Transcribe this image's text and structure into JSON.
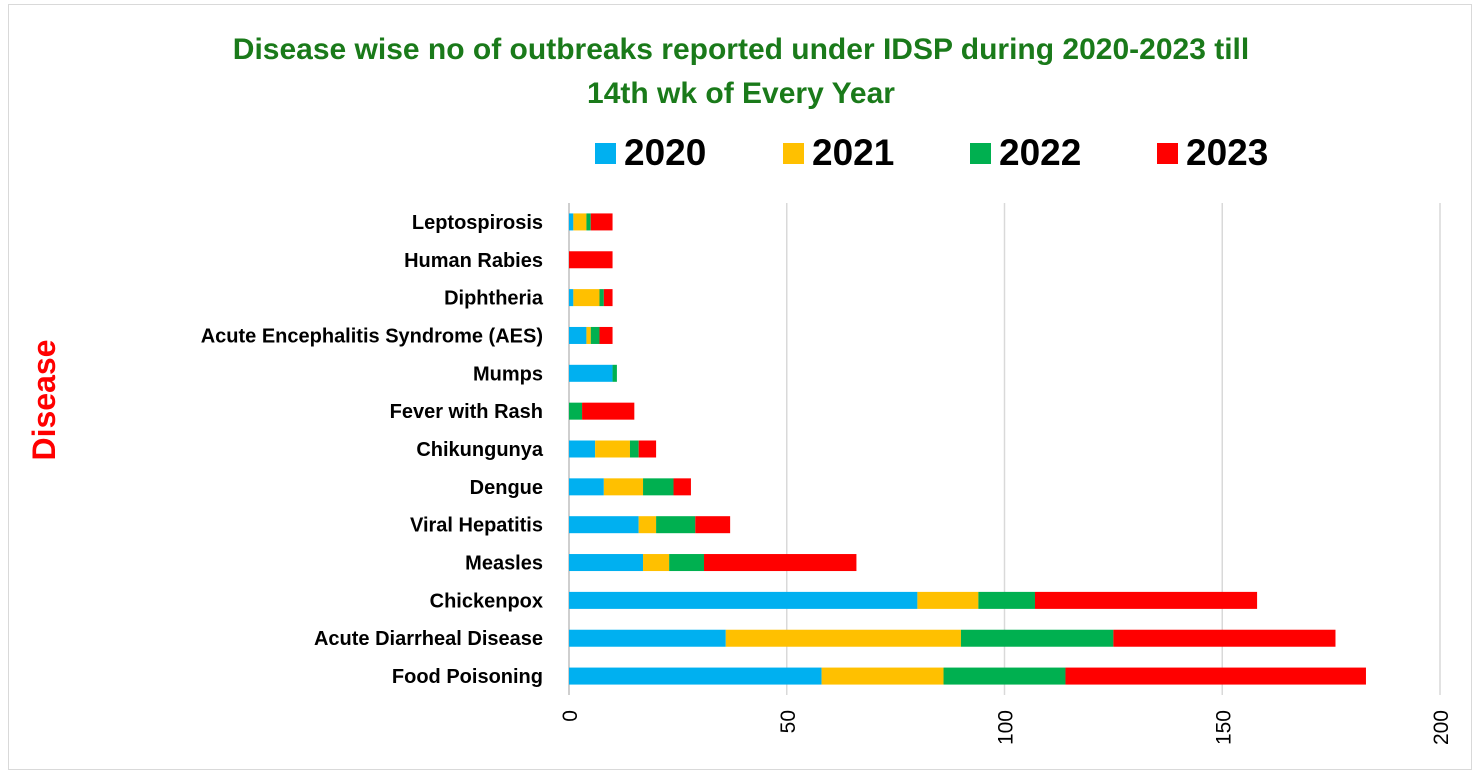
{
  "chart_data": {
    "type": "bar",
    "orientation": "horizontal",
    "stacked": true,
    "title_lines": [
      "Disease wise no of outbreaks reported under IDSP during  2020-2023 till",
      "14th wk of Every Year"
    ],
    "ylabel": "Disease",
    "xlim": [
      0,
      200
    ],
    "xticks": [
      0,
      50,
      100,
      150,
      200
    ],
    "grid": true,
    "legend_position": "top",
    "categories": [
      "Food Poisoning",
      "Acute Diarrheal Disease",
      "Chickenpox",
      "Measles",
      "Viral Hepatitis",
      "Dengue",
      "Chikungunya",
      "Fever with Rash",
      "Mumps",
      "Acute Encephalitis Syndrome (AES)",
      "Diphtheria",
      "Human Rabies",
      "Leptospirosis"
    ],
    "series": [
      {
        "name": "2020",
        "color": "#00b0f0",
        "values": [
          58,
          36,
          80,
          17,
          16,
          8,
          6,
          0,
          10,
          4,
          1,
          0,
          1
        ]
      },
      {
        "name": "2021",
        "color": "#ffc000",
        "values": [
          28,
          54,
          14,
          6,
          4,
          9,
          8,
          0,
          0,
          1,
          6,
          0,
          3
        ]
      },
      {
        "name": "2022",
        "color": "#00b050",
        "values": [
          28,
          35,
          13,
          8,
          9,
          7,
          2,
          3,
          1,
          2,
          1,
          0,
          1
        ]
      },
      {
        "name": "2023",
        "color": "#ff0000",
        "values": [
          69,
          51,
          51,
          35,
          8,
          4,
          4,
          12,
          0,
          3,
          2,
          10,
          5
        ]
      }
    ]
  }
}
